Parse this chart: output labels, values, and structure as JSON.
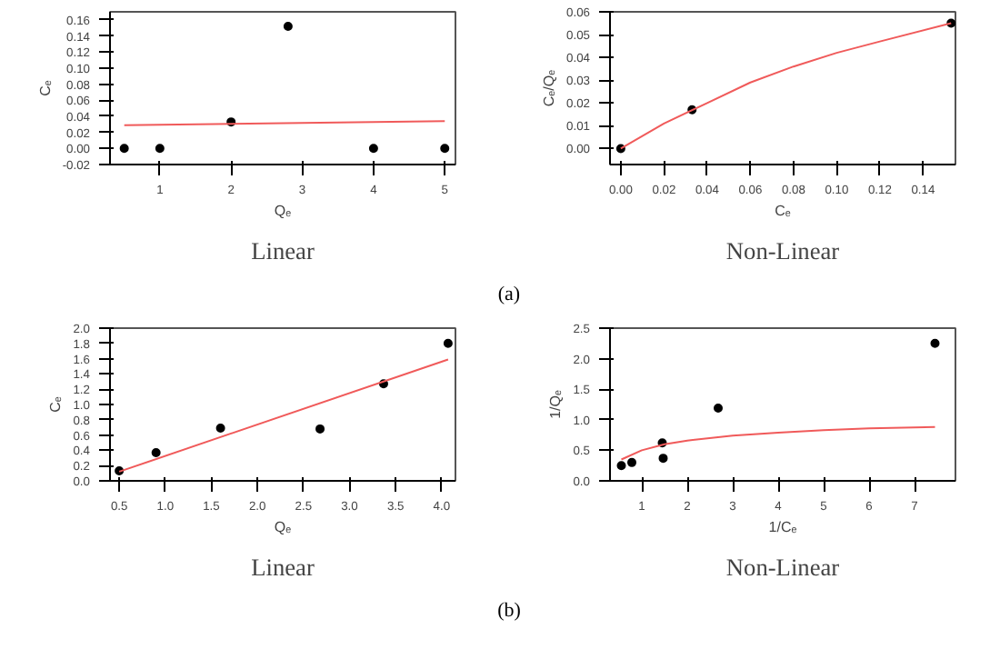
{
  "chart_data": [
    {
      "type": "scatter",
      "title": "Linear",
      "xlabel": "Qₑ",
      "ylabel": "Cₑ",
      "annotations": [
        "(a)"
      ],
      "xlim": [
        0.3,
        5.15
      ],
      "xticks": [
        1,
        2,
        3,
        4,
        5
      ],
      "ylim": [
        -0.02,
        0.17
      ],
      "yticks": [
        -0.02,
        {
          "value": 0,
          "label": "0.00"
        },
        0.02,
        0.04,
        0.06,
        0.08,
        {
          "value": 0.1,
          "label": "0.10"
        },
        0.12,
        0.14,
        0.16
      ],
      "grid": false,
      "series": [
        {
          "marker": "circle",
          "color": "#000000",
          "x": [
            0.5,
            1,
            2,
            2.8,
            4,
            5
          ],
          "values": [
            0.0,
            0.0,
            0.033,
            0.152,
            0.0,
            0.0
          ]
        },
        {
          "type": "line",
          "color": "#f05a5a",
          "x": [
            0.5,
            5
          ],
          "values": [
            0.029,
            0.034
          ]
        }
      ]
    },
    {
      "type": "scatter",
      "title": "Non-Linear",
      "xlabel": "Cₑ",
      "ylabel": "Cₑ/Qₑ",
      "xlim": [
        -0.005,
        0.155
      ],
      "xticks": [
        {
          "value": 0,
          "label": "0.00"
        },
        0.02,
        0.04,
        0.06,
        0.08,
        {
          "value": 0.1,
          "label": "0.10"
        },
        0.12,
        0.14
      ],
      "ylim": [
        -0.007,
        0.06
      ],
      "yticks": [
        {
          "value": 0,
          "label": "0.00"
        },
        0.01,
        0.02,
        0.03,
        0.04,
        0.05,
        0.06
      ],
      "grid": false,
      "series": [
        {
          "marker": "circle",
          "color": "#000000",
          "x": [
            0.0,
            0.033,
            0.153
          ],
          "values": [
            0.0,
            0.017,
            0.055
          ]
        },
        {
          "type": "line",
          "color": "#f05a5a",
          "x": [
            0.0,
            0.02,
            0.04,
            0.06,
            0.08,
            0.1,
            0.12,
            0.153
          ],
          "values": [
            0.0,
            0.011,
            0.02,
            0.029,
            0.036,
            0.042,
            0.047,
            0.055
          ]
        }
      ]
    },
    {
      "type": "scatter",
      "title": "Linear",
      "xlabel": "Qₑ",
      "ylabel": "Cₑ",
      "annotations": [
        "(b)"
      ],
      "xlim": [
        0.4,
        4.15
      ],
      "xticks": [
        0.5,
        {
          "value": 1,
          "label": "1.0"
        },
        1.5,
        {
          "value": 2,
          "label": "2.0"
        },
        2.5,
        {
          "value": 3,
          "label": "3.0"
        },
        3.5,
        {
          "value": 4,
          "label": "4.0"
        }
      ],
      "ylim": [
        0.0,
        2.0
      ],
      "yticks": [
        {
          "value": 0,
          "label": "0.0"
        },
        0.2,
        0.4,
        0.6,
        0.8,
        {
          "value": 1,
          "label": "1.0"
        },
        1.2,
        1.4,
        1.6,
        1.8,
        {
          "value": 2,
          "label": "2.0"
        }
      ],
      "grid": false,
      "series": [
        {
          "marker": "circle",
          "color": "#000000",
          "x": [
            0.5,
            0.9,
            1.6,
            2.68,
            3.37,
            4.07
          ],
          "values": [
            0.13,
            0.37,
            0.69,
            0.68,
            1.27,
            1.8
          ]
        },
        {
          "type": "line",
          "color": "#f05a5a",
          "x": [
            0.5,
            4.07
          ],
          "values": [
            0.12,
            1.59
          ]
        }
      ]
    },
    {
      "type": "scatter",
      "title": "Non-Linear",
      "xlabel": "1/Cₑ",
      "ylabel": "1/Qₑ",
      "xlim": [
        0.3,
        7.9
      ],
      "xticks": [
        1,
        2,
        3,
        4,
        5,
        6,
        7
      ],
      "ylim": [
        0.0,
        2.5
      ],
      "yticks": [
        {
          "value": 0,
          "label": "0.0"
        },
        0.5,
        {
          "value": 1,
          "label": "1.0"
        },
        1.5,
        {
          "value": 2,
          "label": "2.0"
        },
        2.5
      ],
      "grid": false,
      "series": [
        {
          "marker": "circle",
          "color": "#000000",
          "x": [
            0.55,
            0.78,
            1.45,
            1.47,
            2.68,
            7.45
          ],
          "values": [
            0.25,
            0.3,
            0.62,
            0.37,
            1.19,
            2.25
          ]
        },
        {
          "type": "line",
          "color": "#f05a5a",
          "x": [
            0.55,
            1,
            1.5,
            2,
            3,
            4,
            5,
            6,
            7.45
          ],
          "values": [
            0.35,
            0.5,
            0.6,
            0.66,
            0.74,
            0.79,
            0.83,
            0.86,
            0.88
          ]
        }
      ]
    }
  ]
}
